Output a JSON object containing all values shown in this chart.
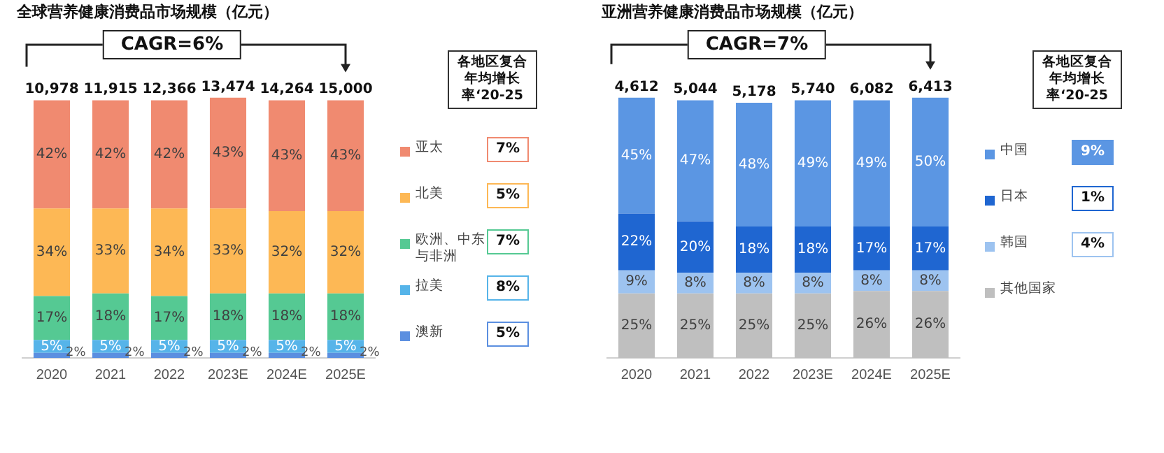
{
  "chart_data": [
    {
      "type": "bar",
      "title": "全球营养健康消费品市场规模（亿元）",
      "stacked": true,
      "legend": "right",
      "categories": [
        "2020",
        "2021",
        "2022",
        "2023E",
        "2024E",
        "2025E"
      ],
      "series": [
        {
          "name": "澳新",
          "color": "#5b8fe0",
          "values": [
            2,
            2,
            2,
            2,
            2,
            2
          ],
          "value_labels": [
            "2%",
            "2%",
            "2%",
            "2%",
            "2%",
            "2%"
          ]
        },
        {
          "name": "拉美",
          "color": "#56b4e9",
          "values": [
            5,
            5,
            5,
            5,
            5,
            5
          ],
          "value_labels": [
            "5%",
            "5%",
            "5%",
            "5%",
            "5%",
            "5%"
          ]
        },
        {
          "name": "欧洲、中东与非洲",
          "color": "#55c993",
          "values": [
            17,
            18,
            17,
            18,
            18,
            18
          ],
          "value_labels": [
            "17%",
            "18%",
            "17%",
            "18%",
            "18%",
            "18%"
          ]
        },
        {
          "name": "北美",
          "color": "#fdb855",
          "values": [
            34,
            33,
            34,
            33,
            32,
            32
          ],
          "value_labels": [
            "34%",
            "33%",
            "34%",
            "33%",
            "32%",
            "32%"
          ]
        },
        {
          "name": "亚太",
          "color": "#f08a70",
          "values": [
            42,
            42,
            42,
            43,
            43,
            43
          ],
          "value_labels": [
            "42%",
            "42%",
            "42%",
            "43%",
            "43%",
            "43%"
          ]
        }
      ],
      "annotations": [
        "CAGR=6%",
        "各地区复合年均增长率‘20-25",
        "7%",
        "5%",
        "7%",
        "8%",
        "5%",
        "10,978",
        "11,915",
        "12,366",
        "13,474",
        "14,264",
        "15,000"
      ]
    },
    {
      "type": "bar",
      "title": "亚洲营养健康消费品市场规模（亿元）",
      "stacked": true,
      "legend": "right",
      "categories": [
        "2020",
        "2021",
        "2022",
        "2023E",
        "2024E",
        "2025E"
      ],
      "series": [
        {
          "name": "其他国家",
          "color": "#bfbfbf",
          "values": [
            25,
            25,
            25,
            25,
            26,
            26
          ],
          "value_labels": [
            "25%",
            "25%",
            "25%",
            "25%",
            "26%",
            "26%"
          ]
        },
        {
          "name": "韩国",
          "color": "#9dc3f0",
          "values": [
            9,
            8,
            8,
            8,
            8,
            8
          ],
          "value_labels": [
            "9%",
            "8%",
            "8%",
            "8%",
            "8%",
            "8%"
          ]
        },
        {
          "name": "日本",
          "color": "#1f66d1",
          "values": [
            22,
            20,
            18,
            18,
            17,
            17
          ],
          "value_labels": [
            "22%",
            "20%",
            "18%",
            "18%",
            "17%",
            "17%"
          ]
        },
        {
          "name": "中国",
          "color": "#5b96e3",
          "values": [
            45,
            47,
            48,
            49,
            49,
            50
          ],
          "value_labels": [
            "45%",
            "47%",
            "48%",
            "49%",
            "49%",
            "50%"
          ]
        }
      ],
      "annotations": [
        "CAGR=7%",
        "各地区复合年均增长率‘20-25",
        "9%",
        "1%",
        "4%",
        "4,612",
        "5,044",
        "5,178",
        "5,740",
        "6,082",
        "6,413"
      ]
    }
  ]
}
